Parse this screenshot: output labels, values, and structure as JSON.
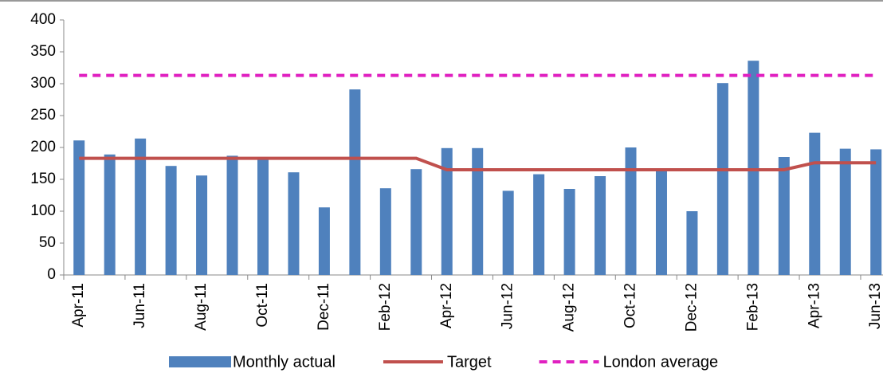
{
  "chart_data": {
    "type": "bar",
    "categories": [
      "Apr-11",
      null,
      "Jun-11",
      null,
      "Aug-11",
      null,
      "Oct-11",
      null,
      "Dec-11",
      null,
      "Feb-12",
      null,
      "Apr-12",
      null,
      "Jun-12",
      null,
      "Aug-12",
      null,
      "Oct-12",
      null,
      "Dec-12",
      null,
      "Feb-13",
      null,
      "Apr-13",
      null,
      "Jun-13"
    ],
    "series": [
      {
        "name": "Monthly actual",
        "type": "bar",
        "color": "#4f81bd",
        "values": [
          211,
          189,
          214,
          171,
          156,
          187,
          185,
          161,
          106,
          291,
          136,
          166,
          199,
          199,
          132,
          158,
          135,
          155,
          200,
          165,
          100,
          301,
          336,
          185,
          223,
          198,
          197
        ]
      },
      {
        "name": "Target",
        "type": "line",
        "color": "#c0504d",
        "values": [
          183,
          183,
          183,
          183,
          183,
          183,
          183,
          183,
          183,
          183,
          183,
          183,
          165,
          165,
          165,
          165,
          165,
          165,
          165,
          165,
          165,
          165,
          165,
          165,
          176,
          176,
          176
        ]
      },
      {
        "name": "London average",
        "type": "line",
        "dashed": true,
        "color": "#e020c0",
        "values": [
          313,
          313,
          313,
          313,
          313,
          313,
          313,
          313,
          313,
          313,
          313,
          313,
          313,
          313,
          313,
          313,
          313,
          313,
          313,
          313,
          313,
          313,
          313,
          313,
          313,
          313,
          313
        ]
      }
    ],
    "ylim": [
      0,
      400
    ],
    "yticks": [
      0,
      50,
      100,
      150,
      200,
      250,
      300,
      350,
      400
    ],
    "grid": false,
    "legend": "bottom"
  }
}
